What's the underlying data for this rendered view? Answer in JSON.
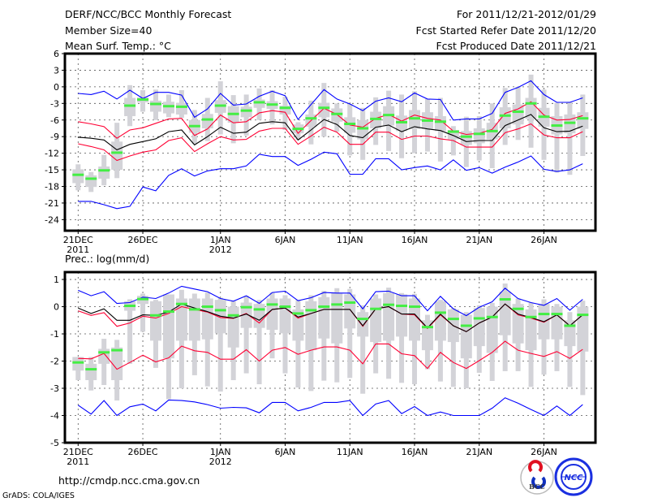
{
  "header": {
    "title": "DERF/NCC/BCC Monthly Forecast",
    "member_size": "Member Size=40",
    "period": "For 2011/12/21-2012/01/29",
    "start_date": "Fcst Started Refer Date 2011/12/20",
    "produced_date": "Fcst Produced Date 2011/12/21"
  },
  "footer": {
    "url": "http://cmdp.ncc.cma.gov.cn",
    "credit": "GrADS: COLA/IGES",
    "logo_bcc": "BCC",
    "logo_ncc": "NCC"
  },
  "colors": {
    "max_min": "#0000ff",
    "spread": "#ff0033",
    "mean": "#000000",
    "median": "#44ee44",
    "box": "#d3d3d8"
  },
  "x_ticks": [
    {
      "day": 0,
      "label": "21DEC",
      "sub": "2011"
    },
    {
      "day": 5,
      "label": "26DEC",
      "sub": ""
    },
    {
      "day": 11,
      "label": "1JAN",
      "sub": "2012"
    },
    {
      "day": 16,
      "label": "6JAN",
      "sub": ""
    },
    {
      "day": 21,
      "label": "11JAN",
      "sub": ""
    },
    {
      "day": 26,
      "label": "16JAN",
      "sub": ""
    },
    {
      "day": 31,
      "label": "21JAN",
      "sub": ""
    },
    {
      "day": 36,
      "label": "26JAN",
      "sub": ""
    }
  ],
  "chart_data": [
    {
      "type": "line",
      "title": "Mean Surf. Temp.: °C",
      "ylim": [
        -26,
        6
      ],
      "yticks": [
        6,
        3,
        0,
        -3,
        -6,
        -9,
        -12,
        -15,
        -18,
        -21,
        -24
      ],
      "grid": true,
      "max": [
        -1.2,
        -1.4,
        -0.8,
        -2.2,
        -0.6,
        -2.1,
        -1.0,
        -1.0,
        -1.5,
        -5.5,
        -4.0,
        -1.2,
        -3.3,
        -3.1,
        -1.7,
        -0.8,
        -1.6,
        -5.9,
        -3.2,
        -0.5,
        -2.2,
        -3.1,
        -4.3,
        -2.6,
        -2.0,
        -2.7,
        -1.1,
        -2.2,
        -2.3,
        -6.0,
        -5.8,
        -5.8,
        -4.8,
        -1.0,
        -0.1,
        1.1,
        -1.4,
        -2.8,
        -2.8,
        -2.0
      ],
      "upper": [
        -6.3,
        -6.7,
        -7.2,
        -9.3,
        -7.8,
        -7.4,
        -6.6,
        -5.8,
        -5.7,
        -8.8,
        -7.6,
        -5.1,
        -6.5,
        -6.3,
        -4.7,
        -4.3,
        -4.6,
        -8.4,
        -6.1,
        -3.9,
        -5.0,
        -6.9,
        -7.3,
        -5.7,
        -5.0,
        -6.2,
        -5.1,
        -5.7,
        -6.0,
        -8.0,
        -8.6,
        -8.4,
        -7.7,
        -4.8,
        -4.0,
        -2.7,
        -5.1,
        -6.0,
        -5.9,
        -5.2
      ],
      "mean": [
        -9.1,
        -9.3,
        -9.6,
        -11.4,
        -10.4,
        -9.9,
        -9.4,
        -8.1,
        -7.8,
        -10.5,
        -9.0,
        -7.3,
        -8.4,
        -8.2,
        -6.6,
        -6.3,
        -6.5,
        -9.6,
        -7.8,
        -5.9,
        -6.8,
        -8.8,
        -9.2,
        -7.3,
        -6.9,
        -8.1,
        -7.2,
        -7.6,
        -7.9,
        -8.8,
        -9.9,
        -9.7,
        -9.7,
        -7.0,
        -6.0,
        -5.0,
        -7.4,
        -8.1,
        -8.0,
        -7.1
      ],
      "lower": [
        -10.3,
        -10.8,
        -11.4,
        -13.3,
        -12.5,
        -11.8,
        -11.4,
        -9.7,
        -9.2,
        -11.7,
        -10.3,
        -9.0,
        -9.6,
        -9.5,
        -8.0,
        -7.5,
        -7.5,
        -10.4,
        -8.9,
        -7.3,
        -8.2,
        -10.4,
        -10.4,
        -8.2,
        -8.2,
        -9.5,
        -8.9,
        -8.9,
        -9.4,
        -9.7,
        -10.9,
        -10.9,
        -10.9,
        -8.3,
        -7.6,
        -6.7,
        -8.7,
        -9.2,
        -9.2,
        -8.1
      ],
      "min": [
        -20.7,
        -20.7,
        -21.3,
        -22.0,
        -21.6,
        -18.1,
        -18.8,
        -16.0,
        -14.8,
        -16.1,
        -15.2,
        -14.8,
        -14.8,
        -14.3,
        -12.2,
        -12.6,
        -12.6,
        -14.2,
        -13.1,
        -11.8,
        -12.1,
        -15.8,
        -15.8,
        -13.0,
        -13.0,
        -15.0,
        -14.6,
        -14.3,
        -15.0,
        -13.2,
        -15.1,
        -14.6,
        -15.6,
        -14.5,
        -13.6,
        -12.5,
        -14.9,
        -15.3,
        -15.0,
        -13.9
      ],
      "median": [
        -15.9,
        -16.6,
        -15.1,
        -11.9,
        -3.4,
        -2.3,
        -3.1,
        -3.5,
        -3.6,
        -7.1,
        -5.9,
        -3.4,
        -4.9,
        -4.3,
        -2.8,
        -3.2,
        -3.8,
        -7.6,
        -5.7,
        -3.8,
        -4.9,
        -6.7,
        -7.5,
        -5.8,
        -5.1,
        -6.4,
        -5.7,
        -6.1,
        -6.3,
        -8.1,
        -9.0,
        -8.5,
        -8.0,
        -5.2,
        -4.5,
        -3.0,
        -5.4,
        -7.0,
        -6.5,
        -5.7
      ],
      "whisker_low": [
        -18.7,
        -19.0,
        -17.8,
        -16.5,
        -7.1,
        -4.5,
        -6.0,
        -5.5,
        -5.6,
        -10.3,
        -9.8,
        -8.6,
        -10.2,
        -8.8,
        -6.0,
        -6.8,
        -7.8,
        -9.6,
        -10.4,
        -9.0,
        -8.1,
        -12.4,
        -13.2,
        -10.5,
        -11.6,
        -12.9,
        -12.0,
        -11.7,
        -13.5,
        -12.4,
        -14.5,
        -13.3,
        -14.7,
        -10.5,
        -9.6,
        -11.0,
        -13.2,
        -15.5,
        -15.9,
        -12.5
      ],
      "whisker_high": [
        -14.0,
        -15.4,
        -12.3,
        -6.5,
        0.3,
        -0.6,
        -0.5,
        -1.4,
        -0.6,
        -4.2,
        -2.0,
        1.0,
        -1.5,
        -1.4,
        -0.3,
        -0.6,
        -1.8,
        -6.4,
        -2.5,
        0.7,
        -3.0,
        -3.1,
        -3.8,
        -1.9,
        -0.7,
        -1.4,
        -0.8,
        -2.2,
        -2.0,
        -7.1,
        -5.4,
        -5.3,
        -3.0,
        -0.2,
        0.0,
        2.2,
        -0.5,
        -2.9,
        -2.7,
        -1.4
      ],
      "box_low": [
        -17.4,
        -18.1,
        -16.6,
        -15.0,
        -5.3,
        -2.8,
        -4.5,
        -4.8,
        -5.0,
        -8.3,
        -7.5,
        -4.7,
        -6.5,
        -5.5,
        -3.8,
        -4.0,
        -5.0,
        -8.4,
        -7.2,
        -5.5,
        -6.3,
        -8.3,
        -9.5,
        -7.5,
        -7.0,
        -8.0,
        -7.6,
        -7.6,
        -8.0,
        -9.5,
        -10.5,
        -10.2,
        -9.5,
        -7.5,
        -6.8,
        -5.8,
        -7.2,
        -8.6,
        -8.4,
        -7.6
      ],
      "box_high": [
        -14.9,
        -16.0,
        -14.4,
        -9.9,
        -2.0,
        -1.9,
        -2.5,
        -2.7,
        -2.9,
        -6.0,
        -4.9,
        -2.4,
        -3.5,
        -3.6,
        -2.3,
        -2.6,
        -3.4,
        -6.8,
        -5.0,
        -2.9,
        -3.9,
        -5.5,
        -6.0,
        -4.5,
        -3.5,
        -5.2,
        -4.2,
        -4.6,
        -5.3,
        -7.8,
        -8.0,
        -7.5,
        -6.5,
        -3.7,
        -3.2,
        -2.0,
        -3.8,
        -5.3,
        -5.0,
        -4.6
      ]
    },
    {
      "type": "line",
      "title": "Prec.: log(mm/d)",
      "ylim": [
        -5,
        1.27
      ],
      "yticks": [
        1,
        0,
        -1,
        -2,
        -3,
        -4,
        -5
      ],
      "grid": true,
      "max": [
        0.6,
        0.4,
        0.55,
        0.12,
        0.15,
        0.35,
        0.3,
        0.5,
        0.75,
        0.65,
        0.55,
        0.3,
        0.2,
        0.4,
        0.12,
        0.52,
        0.57,
        0.22,
        0.33,
        0.52,
        0.5,
        0.5,
        -0.08,
        0.55,
        0.57,
        0.4,
        0.4,
        -0.15,
        0.38,
        -0.08,
        -0.33,
        -0.02,
        0.18,
        0.68,
        0.3,
        0.15,
        0.05,
        0.3,
        -0.13,
        0.27
      ],
      "upper": [
        -0.15,
        -0.32,
        -0.22,
        -0.72,
        -0.6,
        -0.35,
        -0.42,
        -0.25,
        0.0,
        -0.1,
        -0.2,
        -0.4,
        -0.43,
        -0.25,
        -0.6,
        -0.1,
        -0.05,
        -0.42,
        -0.25,
        -0.1,
        -0.1,
        -0.1,
        -0.72,
        -0.08,
        0.0,
        -0.27,
        -0.3,
        -0.8,
        -0.3,
        -0.7,
        -0.92,
        -0.6,
        -0.38,
        0.1,
        -0.3,
        -0.42,
        -0.57,
        -0.3,
        -0.7,
        -0.3
      ],
      "mean": [
        -0.05,
        -0.25,
        -0.08,
        -0.5,
        -0.5,
        -0.3,
        -0.32,
        -0.2,
        0.1,
        -0.05,
        -0.18,
        -0.35,
        -0.42,
        -0.27,
        -0.5,
        -0.1,
        -0.05,
        -0.38,
        -0.25,
        -0.1,
        -0.1,
        -0.1,
        -0.7,
        -0.08,
        0.0,
        -0.27,
        -0.27,
        -0.78,
        -0.27,
        -0.7,
        -0.92,
        -0.6,
        -0.38,
        0.1,
        -0.27,
        -0.4,
        -0.55,
        -0.3,
        -0.7,
        -0.3
      ],
      "lower": [
        -1.9,
        -1.92,
        -1.72,
        -2.3,
        -2.05,
        -1.78,
        -2.03,
        -1.88,
        -1.45,
        -1.62,
        -1.68,
        -1.93,
        -1.93,
        -1.58,
        -2.0,
        -1.6,
        -1.5,
        -1.75,
        -1.6,
        -1.48,
        -1.48,
        -1.6,
        -2.1,
        -1.37,
        -1.37,
        -1.73,
        -1.8,
        -2.27,
        -1.68,
        -2.05,
        -2.27,
        -1.98,
        -1.68,
        -1.27,
        -1.6,
        -1.72,
        -1.83,
        -1.65,
        -1.9,
        -1.57
      ],
      "min": [
        -3.62,
        -3.95,
        -3.45,
        -4.0,
        -3.68,
        -3.58,
        -3.83,
        -3.43,
        -3.45,
        -3.5,
        -3.6,
        -3.73,
        -3.7,
        -3.72,
        -3.9,
        -3.52,
        -3.52,
        -3.83,
        -3.7,
        -3.52,
        -3.52,
        -3.45,
        -4.0,
        -3.58,
        -3.45,
        -3.93,
        -3.67,
        -4.0,
        -3.87,
        -4.0,
        -4.0,
        -4.0,
        -3.73,
        -3.35,
        -3.55,
        -3.78,
        -4.0,
        -3.65,
        -4.0,
        -3.6
      ],
      "median": [
        -2.05,
        -2.3,
        -1.68,
        -1.6,
        0.03,
        0.28,
        -0.32,
        -0.18,
        0.1,
        -0.1,
        0.0,
        -0.13,
        -0.32,
        -0.02,
        -0.1,
        0.08,
        0.0,
        -0.25,
        -0.13,
        0.0,
        0.08,
        0.15,
        -0.45,
        -0.08,
        0.07,
        0.03,
        0.0,
        -0.75,
        -0.22,
        -0.45,
        -0.7,
        -0.43,
        -0.38,
        0.27,
        -0.08,
        -0.38,
        -0.27,
        -0.27,
        -0.7,
        -0.3
      ],
      "whisker_low": [
        -2.7,
        -3.08,
        -2.88,
        -3.45,
        -2.1,
        -0.92,
        -2.25,
        -3.4,
        -3.0,
        -2.52,
        -2.93,
        -3.12,
        -2.7,
        -2.45,
        -2.85,
        -1.9,
        -2.45,
        -2.97,
        -3.1,
        -2.72,
        -2.78,
        -2.62,
        -3.2,
        -2.45,
        -2.65,
        -2.8,
        -2.85,
        -2.3,
        -2.75,
        -2.95,
        -3.0,
        -2.43,
        -2.73,
        -2.37,
        -2.37,
        -2.95,
        -2.5,
        -2.37,
        -2.95,
        -3.25
      ],
      "whisker_high": [
        -1.85,
        -1.85,
        -1.18,
        -1.22,
        0.27,
        0.48,
        0.25,
        0.45,
        0.62,
        0.48,
        0.52,
        0.33,
        0.2,
        0.4,
        0.25,
        0.52,
        0.42,
        0.25,
        0.42,
        0.58,
        0.68,
        0.65,
        0.05,
        0.45,
        0.7,
        0.5,
        0.47,
        -0.3,
        0.25,
        -0.05,
        -0.2,
        0.05,
        0.14,
        0.85,
        0.3,
        0.15,
        0.27,
        0.1,
        -0.2,
        0.22
      ],
      "box_low": [
        -2.35,
        -2.7,
        -2.1,
        -2.7,
        -0.15,
        0.1,
        -1.25,
        -1.9,
        -1.25,
        -1.25,
        -1.2,
        -0.98,
        -1.5,
        -0.78,
        -0.78,
        -0.85,
        -0.98,
        -1.25,
        -1.6,
        -1.17,
        -1.35,
        -0.8,
        -1.1,
        -1.3,
        -1.25,
        -1.1,
        -1.25,
        -1.6,
        -1.25,
        -1.3,
        -1.9,
        -1.45,
        -1.7,
        -1.05,
        -1.35,
        -1.6,
        -1.2,
        -1.2,
        -1.45,
        -1.65
      ],
      "box_high": [
        -1.85,
        -2.1,
        -1.55,
        -1.5,
        0.2,
        0.4,
        0.2,
        0.45,
        0.3,
        0.3,
        0.3,
        0.25,
        0.0,
        0.15,
        0.1,
        0.3,
        0.3,
        -0.1,
        0.2,
        0.35,
        0.5,
        0.45,
        -0.2,
        0.3,
        0.5,
        0.45,
        0.3,
        -0.5,
        0.2,
        -0.1,
        -0.3,
        -0.05,
        0.0,
        0.55,
        0.1,
        -0.1,
        0.1,
        0.0,
        -0.5,
        0.0
      ]
    }
  ]
}
